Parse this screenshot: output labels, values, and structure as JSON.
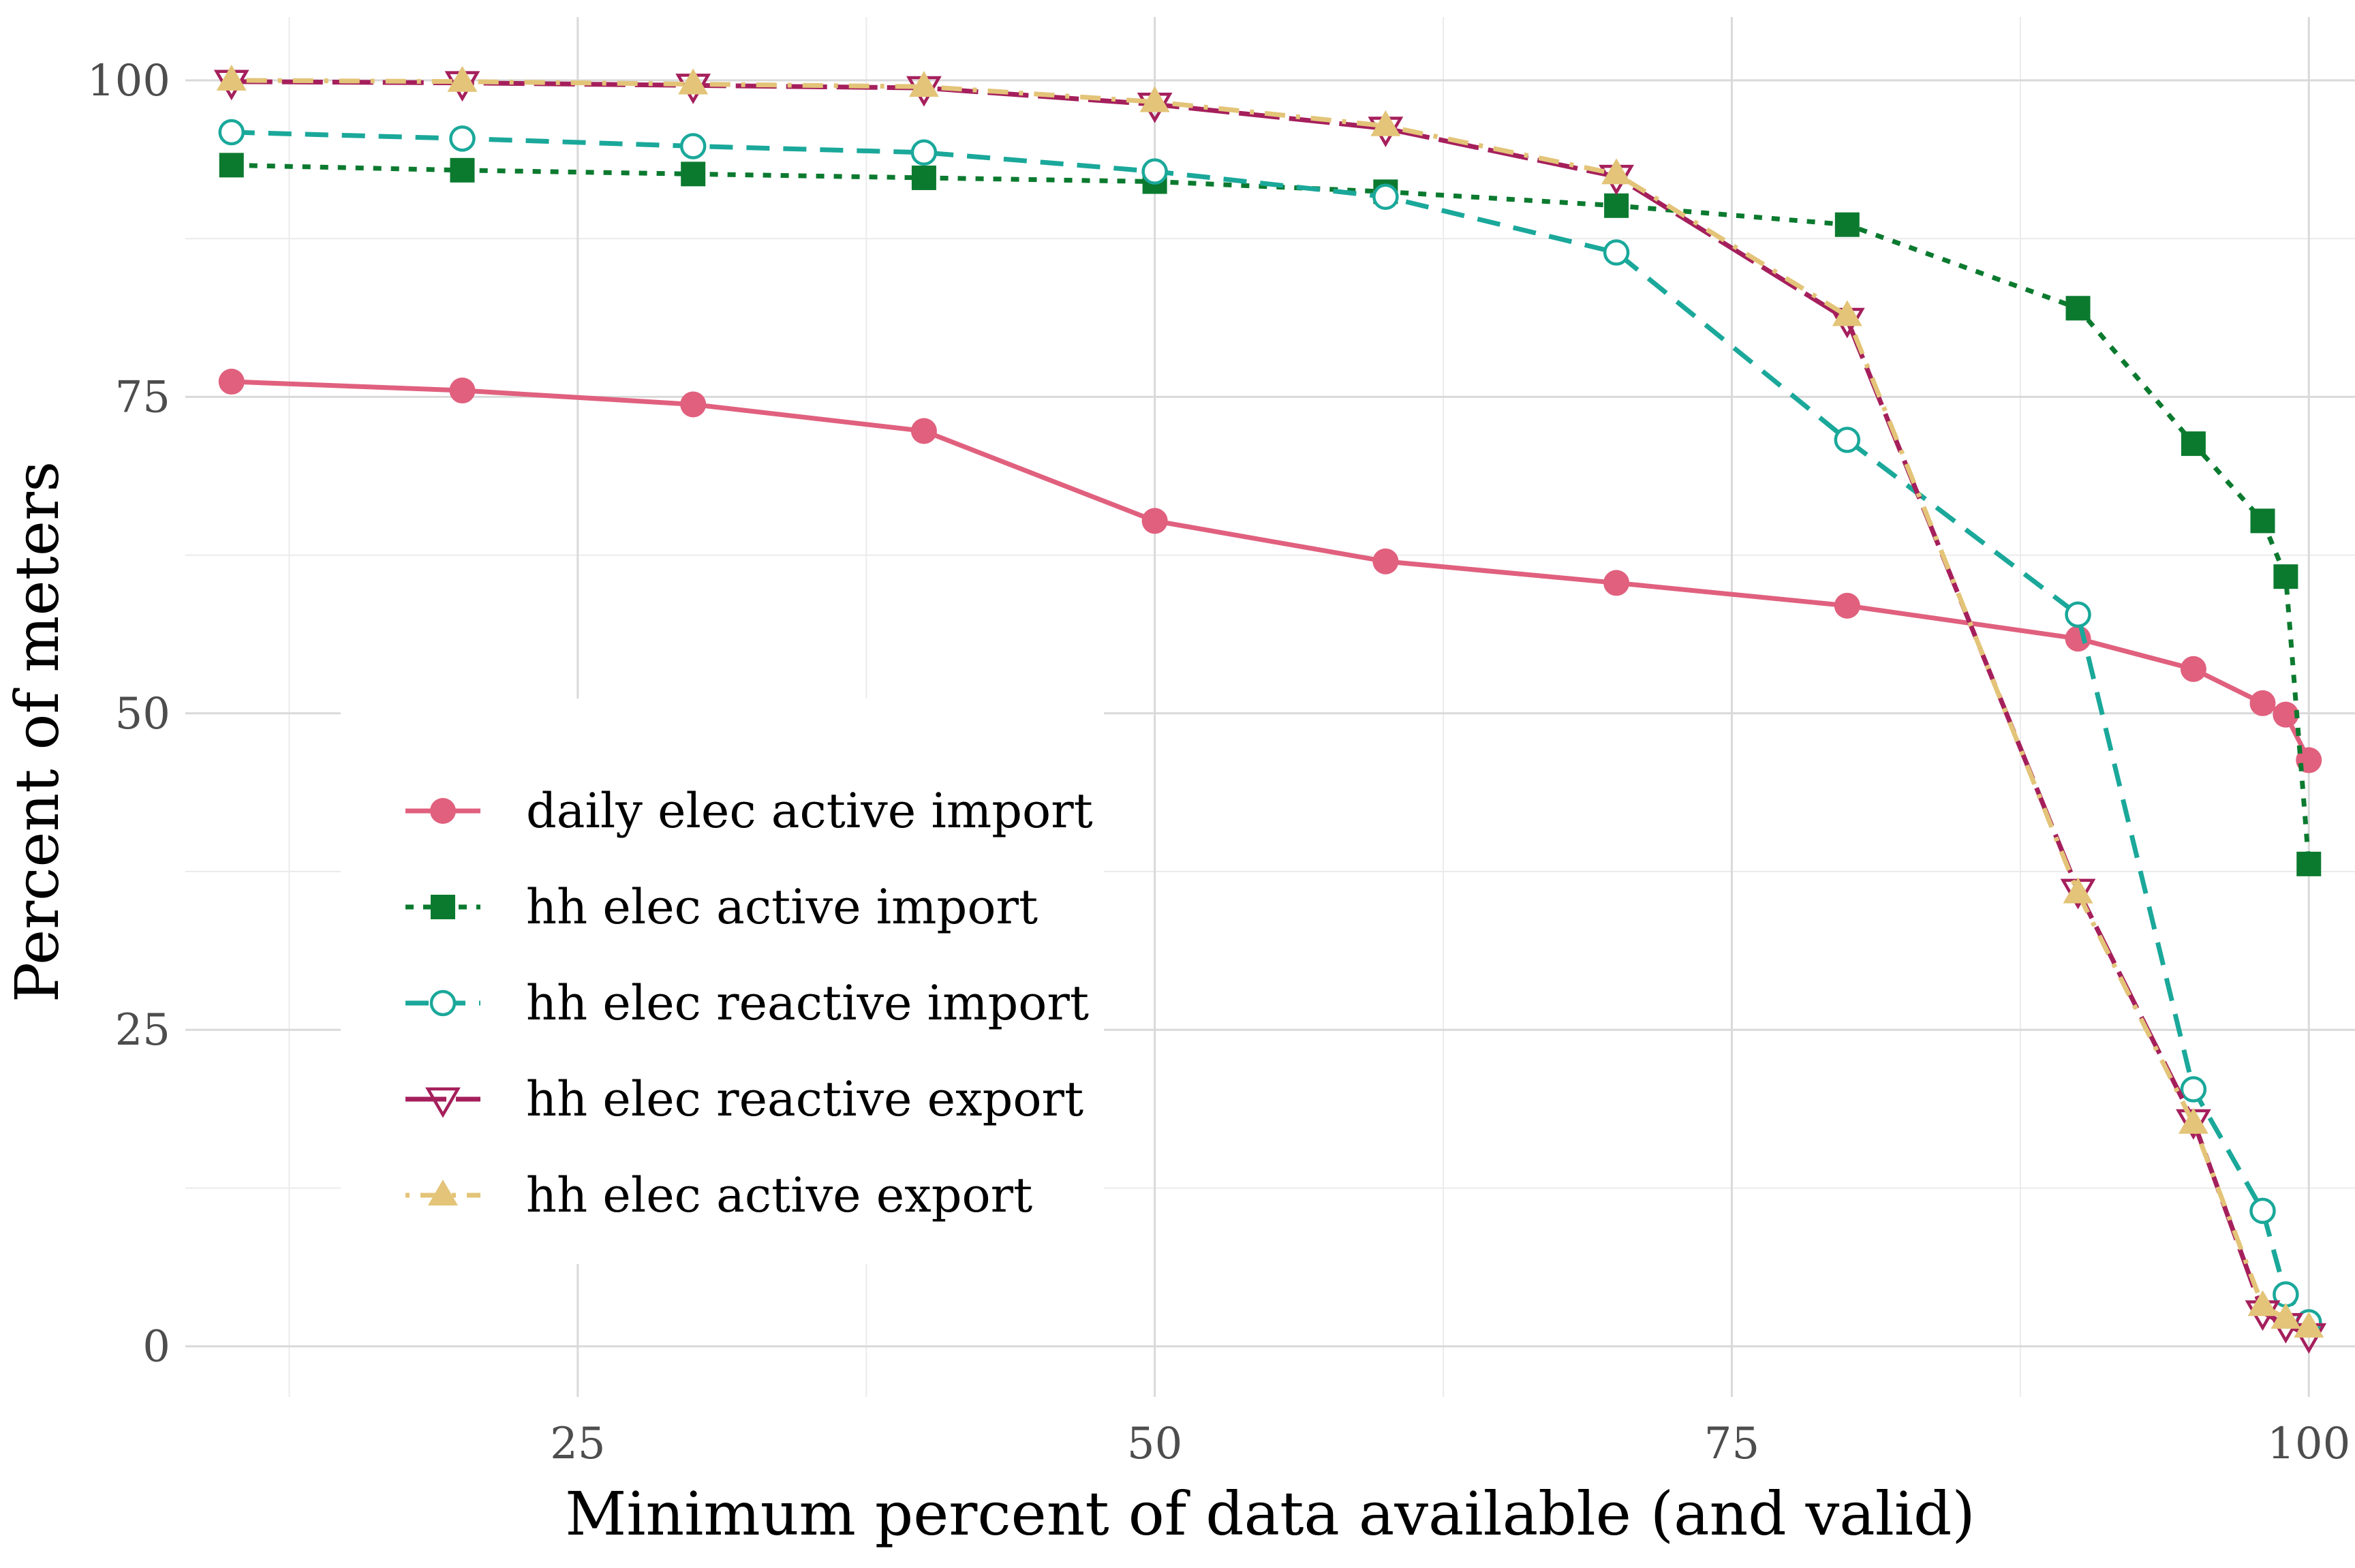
{
  "chart_data": {
    "type": "line",
    "title": "",
    "xlabel": "Minimum percent of data available (and valid)",
    "ylabel": "Percent of meters",
    "xlim": [
      8,
      102
    ],
    "ylim": [
      -4,
      105
    ],
    "x_ticks": [
      25,
      50,
      75,
      100
    ],
    "x_tick_labels": [
      "25",
      "50",
      "75",
      "100"
    ],
    "y_ticks": [
      0,
      25,
      50,
      75,
      100
    ],
    "y_tick_labels": [
      "0",
      "25",
      "50",
      "75",
      "100"
    ],
    "grid": true,
    "legend_position": "left-center",
    "x": [
      10,
      20,
      30,
      40,
      50,
      60,
      70,
      80,
      90,
      95,
      98,
      99,
      100
    ],
    "series": [
      {
        "name": "daily elec active import",
        "color": "#e0607e",
        "marker": "filled-circle",
        "line_style": "solid",
        "values": [
          76.2,
          75.5,
          74.4,
          72.3,
          65.2,
          62.0,
          60.3,
          58.5,
          55.9,
          53.5,
          50.8,
          49.9,
          46.3
        ]
      },
      {
        "name": "hh elec active import",
        "color": "#0b7a2f",
        "marker": "filled-square",
        "line_style": "dotted",
        "values": [
          93.3,
          92.9,
          92.6,
          92.3,
          92.0,
          91.2,
          90.1,
          88.6,
          82.0,
          71.3,
          65.2,
          60.8,
          38.1
        ]
      },
      {
        "name": "hh elec reactive import",
        "color": "#1aa89a",
        "marker": "open-circle",
        "line_style": "dashed",
        "values": [
          95.9,
          95.4,
          94.8,
          94.3,
          92.8,
          90.8,
          86.4,
          71.6,
          57.8,
          20.3,
          10.7,
          4.1,
          1.9
        ]
      },
      {
        "name": "hh elec reactive export",
        "color": "#a51f5c",
        "marker": "open-down-triangle",
        "line_style": "longdash",
        "values": [
          99.9,
          99.8,
          99.6,
          99.4,
          98.1,
          96.2,
          92.4,
          81.1,
          36.0,
          17.8,
          2.7,
          1.7,
          0.9
        ]
      },
      {
        "name": "hh elec active export",
        "color": "#e3c478",
        "marker": "filled-up-triangle",
        "line_style": "dotdash",
        "values": [
          100.0,
          99.9,
          99.7,
          99.5,
          98.3,
          96.4,
          92.6,
          81.4,
          35.8,
          17.6,
          3.2,
          2.2,
          1.5
        ]
      }
    ]
  }
}
